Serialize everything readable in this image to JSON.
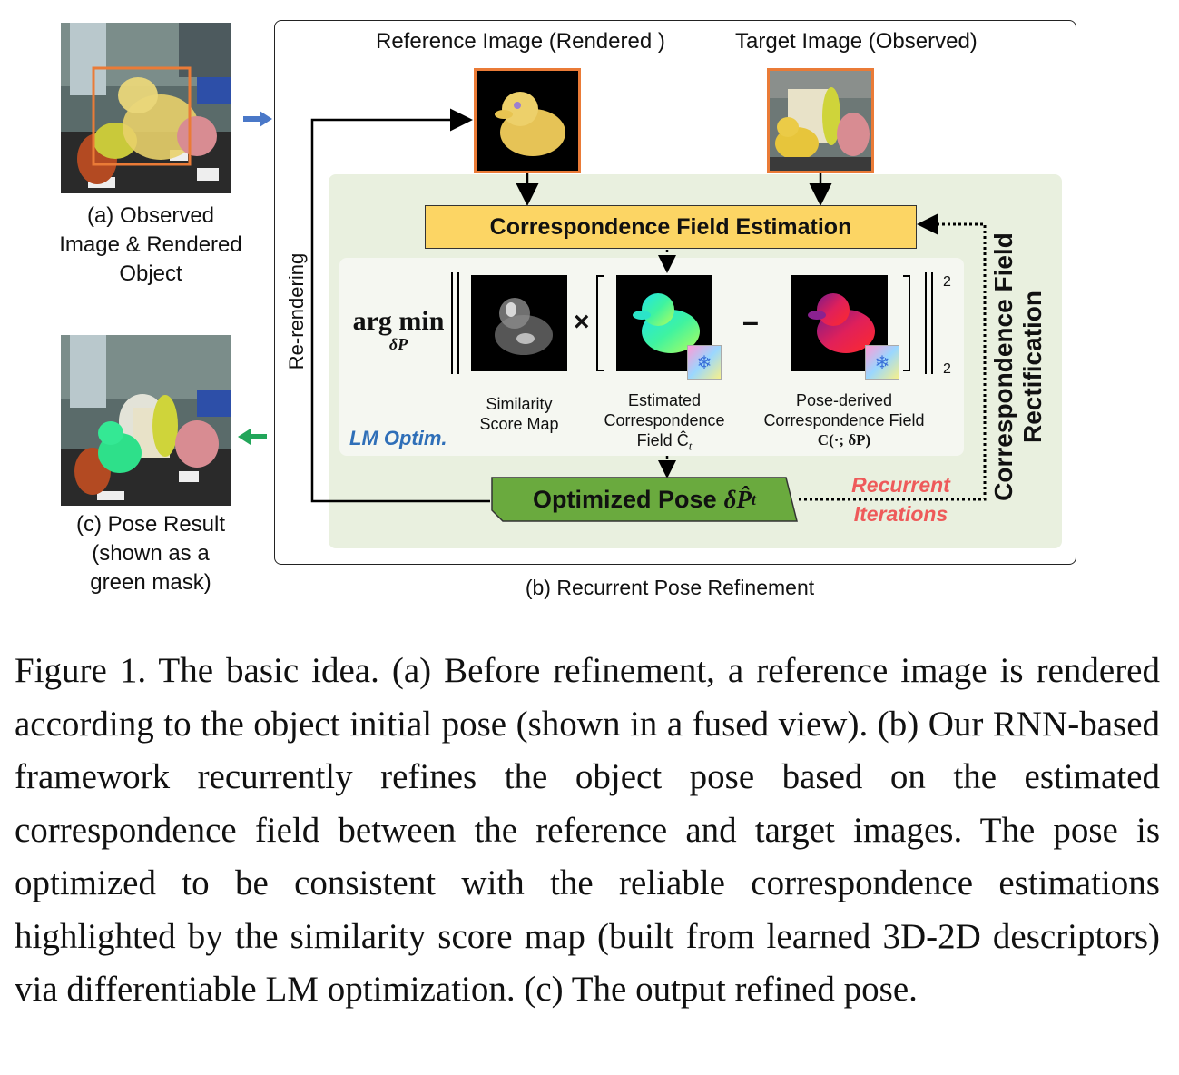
{
  "panel_a": {
    "caption_lines": [
      "(a) Observed",
      "Image & Rendered",
      "Object"
    ]
  },
  "panel_c": {
    "caption_lines": [
      "(c) Pose Result",
      "(shown as a",
      "green mask)"
    ]
  },
  "panel_b": {
    "caption": "(b) Recurrent Pose Refinement",
    "reference_title": "Reference Image (Rendered )",
    "target_title": "Target Image (Observed)",
    "cfe_label": "Correspondence Field Estimation",
    "optimized_pose_label": "Optimized Pose",
    "optimized_pose_symbol": "δP̂",
    "optimized_pose_sub": "t",
    "rerendering_label": "Re-rendering",
    "cfr_lines": [
      "Correspondence Field",
      "Rectification"
    ],
    "recurrent_lines": [
      "Recurrent",
      "Iterations"
    ],
    "lm_label": "LM Optim.",
    "argmin_main": "arg min",
    "argmin_sub": "δP",
    "times_symbol": "×",
    "minus_symbol": "–",
    "norm_sup": "2",
    "norm_sub": "2",
    "similarity_lines": [
      "Similarity",
      "Score Map"
    ],
    "estimated_lines": [
      "Estimated",
      "Correspondence",
      "Field Ĉ"
    ],
    "estimated_sub": "t",
    "posederived_lines": [
      "Pose-derived",
      "Correspondence Field",
      "C(·; δP)"
    ],
    "snowflake_icon": "❄"
  },
  "colors": {
    "orange": "#ea7b37",
    "yellow_box": "#fcd564",
    "green_box": "#6aaa3e",
    "green_zone": "#e9f0df",
    "blue_arrow": "#4a78c8",
    "green_arrow": "#22a65a",
    "lm_text": "#2f6fb8",
    "recurrent_text": "#ee5a5a"
  },
  "figure_caption": "Figure 1. The basic idea. (a) Before refinement, a reference image is rendered according to the object initial pose (shown in a fused view). (b) Our RNN-based framework recurrently refines the object pose based on the estimated correspondence field between the reference and target images. The pose is optimized to be consistent with the reliable correspondence estimations highlighted by the similarity score map (built from learned 3D-2D descriptors) via differentiable LM optimization. (c) The output refined pose."
}
